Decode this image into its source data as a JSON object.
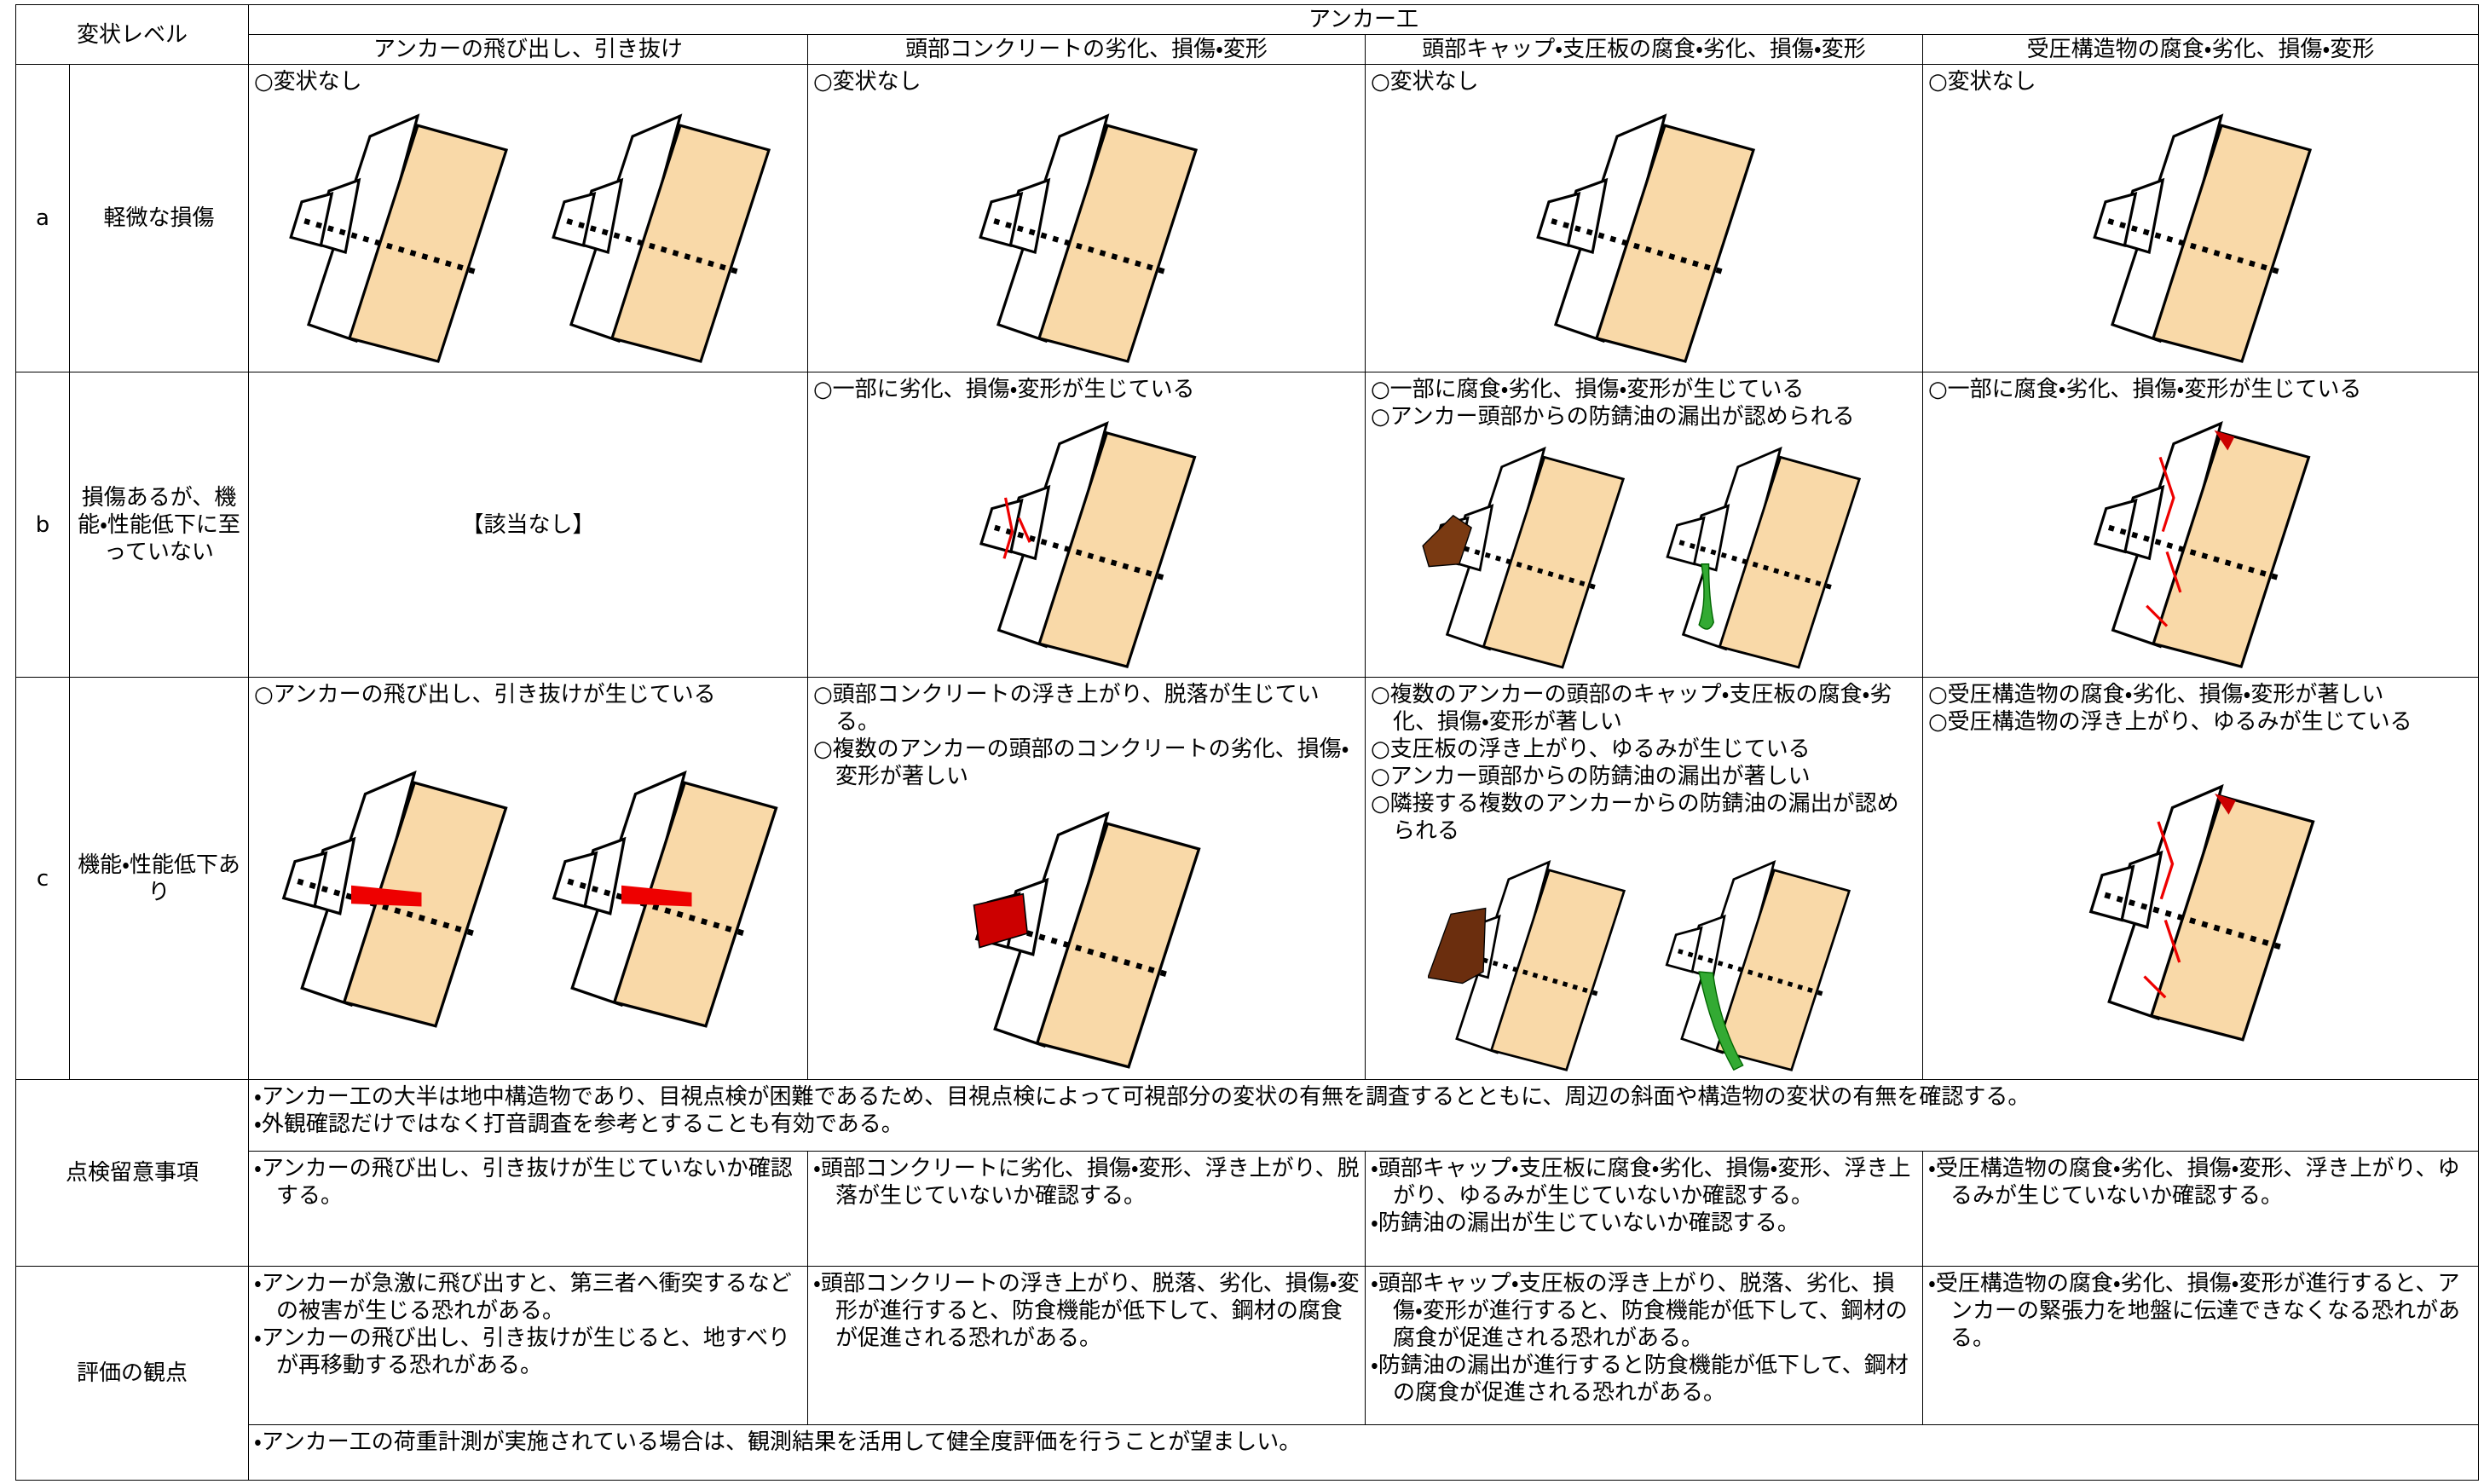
{
  "header": {
    "level_label": "変状レベル",
    "group": "アンカー工",
    "columns": [
      "アンカーの飛び出し、引き抜け",
      "頭部コンクリートの劣化、損傷・変形",
      "頭部キャップ・支圧板の腐食・劣化、損傷・変形",
      "受圧構造物の腐食・劣化、損傷・変形"
    ]
  },
  "rows": [
    {
      "level": "a",
      "label": "軽微な損傷",
      "cells": [
        [
          "○変状なし"
        ],
        [
          "○変状なし"
        ],
        [
          "○変状なし"
        ],
        [
          "○変状なし"
        ]
      ]
    },
    {
      "level": "b",
      "label": "損傷あるが、機能・性能低下に至っていない",
      "cells": [
        [
          "【該当なし】"
        ],
        [
          "○一部に劣化、損傷・変形が生じている"
        ],
        [
          "○一部に腐食・劣化、損傷・変形が生じている",
          "○アンカー頭部からの防錆油の漏出が認められる"
        ],
        [
          "○一部に腐食・劣化、損傷・変形が生じている"
        ]
      ]
    },
    {
      "level": "c",
      "label": "機能・性能低下あり",
      "cells": [
        [
          "○アンカーの飛び出し、引き抜けが生じている"
        ],
        [
          "○頭部コンクリートの浮き上がり、脱落が生じている。",
          "○複数のアンカーの頭部のコンクリートの劣化、損傷・変形が著しい"
        ],
        [
          "○複数のアンカーの頭部のキャップ・支圧板の腐食・劣化、損傷・変形が著しい",
          "○支圧板の浮き上がり、ゆるみが生じている",
          "○アンカー頭部からの防錆油の漏出が著しい",
          "○隣接する複数のアンカーからの防錆油の漏出が認められる"
        ],
        [
          "○受圧構造物の腐食・劣化、損傷・変形が著しい",
          "○受圧構造物の浮き上がり、ゆるみが生じている"
        ]
      ]
    }
  ],
  "inspection": {
    "title": "点検留意事項",
    "common": [
      "・アンカー工の大半は地中構造物であり、目視点検が困難であるため、目視点検によって可視部分の変状の有無を調査するとともに、周辺の斜面や構造物の変状の有無を確認する。",
      "・外観確認だけではなく打音調査を参考とすることも有効である。"
    ],
    "columns": [
      [
        "・アンカーの飛び出し、引き抜けが生じていないか確認する。"
      ],
      [
        "・頭部コンクリートに劣化、損傷・変形、浮き上がり、脱落が生じていないか確認する。"
      ],
      [
        "・頭部キャップ・支圧板に腐食・劣化、損傷・変形、浮き上がり、ゆるみが生じていないか確認する。",
        "・防錆油の漏出が生じていないか確認する。"
      ],
      [
        "・受圧構造物の腐食・劣化、損傷・変形、浮き上がり、ゆるみが生じていないか確認する。"
      ]
    ]
  },
  "evaluation": {
    "title": "評価の観点",
    "columns": [
      [
        "・アンカーが急激に飛び出すと、第三者へ衝突するなどの被害が生じる恐れがある。",
        "・アンカーの飛び出し、引き抜けが生じると、地すべりが再移動する恐れがある。"
      ],
      [
        "・頭部コンクリートの浮き上がり、脱落、劣化、損傷・変形が進行すると、防食機能が低下して、鋼材の腐食が促進される恐れがある。"
      ],
      [
        "・頭部キャップ・支圧板の浮き上がり、脱落、劣化、損傷・変形が進行すると、防食機能が低下して、鋼材の腐食が促進される恐れがある。",
        "・防錆油の漏出が進行すると防食機能が低下して、鋼材の腐食が促進される恐れがある。"
      ],
      [
        "・受圧構造物の腐食・劣化、損傷・変形が進行すると、アンカーの緊張力を地盤に伝達できなくなる恐れがある。"
      ]
    ],
    "common": [
      "・アンカー工の荷重計測が実施されている場合は、観測結果を活用して健全度評価を行うことが望ましい。"
    ]
  }
}
